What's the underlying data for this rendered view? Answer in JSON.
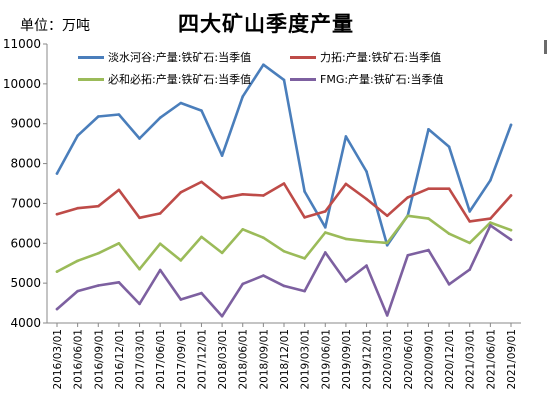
{
  "chart_data": {
    "type": "line",
    "title": "四大矿山季度产量",
    "unit_label": "单位：万吨",
    "ylim": [
      4000,
      11000
    ],
    "yticks": [
      4000,
      5000,
      6000,
      7000,
      8000,
      9000,
      10000,
      11000
    ],
    "ytick_labels": [
      "4000",
      "5000",
      "6000",
      "7000",
      "8000",
      "9000",
      "10000",
      "11000"
    ],
    "grid": false,
    "legend_placement": "top",
    "categories": [
      "2016/03/01",
      "2016/06/01",
      "2016/09/01",
      "2016/12/01",
      "2017/03/01",
      "2017/06/01",
      "2017/09/01",
      "2017/12/01",
      "2018/03/01",
      "2018/06/01",
      "2018/09/01",
      "2018/12/01",
      "2019/03/01",
      "2019/06/01",
      "2019/09/01",
      "2019/12/01",
      "2020/03/01",
      "2020/06/01",
      "2020/09/01",
      "2020/12/01",
      "2021/03/01",
      "2021/06/01",
      "2021/09/01"
    ],
    "x_point_labels": [
      "2016/03/01",
      "2016/06/01",
      "2016/09/01",
      "2016/12/01",
      "2017/03/01",
      "2017/06/01",
      "2017/09/01",
      "2017/12/01",
      "2018/03/01",
      "2018/06/01",
      "2018/09/01",
      "2018/12/01",
      "2019/03/01",
      "2019/06/01",
      "2019/09/01",
      "2019/12/01",
      "2020/03/01",
      "2020/06/01",
      "2020/09/01",
      "2020/12/01",
      "2021/03/01",
      "2021/06/01",
      "2021/09/01"
    ],
    "series": [
      {
        "name": "淡水河谷:产量:铁矿石:当季值",
        "color": "#4a7ebb",
        "values": [
          7750,
          8700,
          9180,
          9230,
          8630,
          9150,
          9520,
          9330,
          8200,
          9680,
          10480,
          10100,
          7300,
          6400,
          8680,
          7800,
          5950,
          6700,
          8860,
          8420,
          6800,
          7580,
          8970
        ]
      },
      {
        "name": "力拓:产量:铁矿石:当季值",
        "color": "#be4b48",
        "values": [
          6730,
          6880,
          6930,
          7340,
          6640,
          6750,
          7280,
          7540,
          7130,
          7230,
          7200,
          7500,
          6650,
          6800,
          7490,
          7110,
          6690,
          7150,
          7370,
          7370,
          6550,
          6620,
          7200
        ]
      },
      {
        "name": "必和必拓:产量:铁矿石:当季值",
        "color": "#9bbb59",
        "values": [
          5290,
          5560,
          5750,
          6000,
          5350,
          5990,
          5570,
          6160,
          5760,
          6350,
          6140,
          5800,
          5620,
          6270,
          6110,
          6050,
          6010,
          6690,
          6620,
          6240,
          6010,
          6520,
          6330
        ]
      },
      {
        "name": "FMG:产量:铁矿石:当季值",
        "color": "#7d60a0",
        "values": [
          4350,
          4800,
          4940,
          5020,
          4480,
          5330,
          4590,
          4750,
          4170,
          4980,
          5190,
          4930,
          4800,
          5770,
          5040,
          5440,
          4190,
          5700,
          5830,
          4970,
          5340,
          6450,
          6090
        ]
      }
    ]
  }
}
